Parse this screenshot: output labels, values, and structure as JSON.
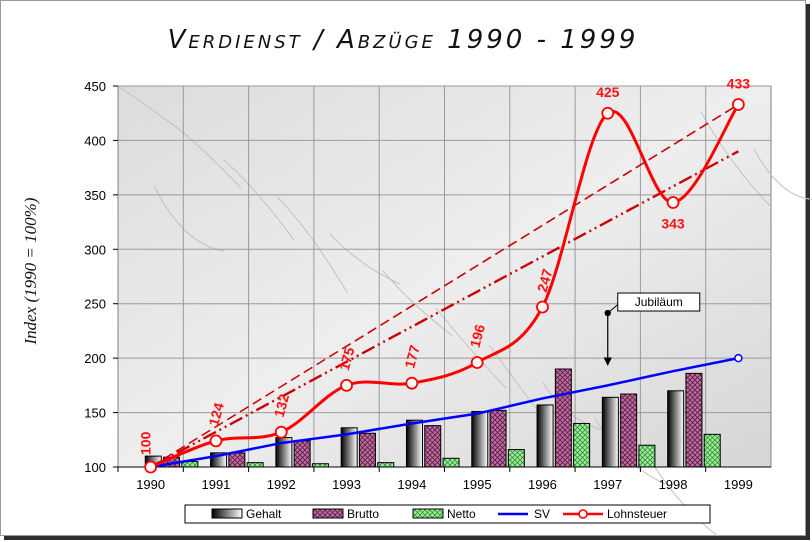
{
  "chart_data": {
    "type": "bar",
    "title": "Verdienst / Abzüge 1990 - 1999",
    "ylabel": "Index  (1990 = 100%)",
    "xlabel": "",
    "ylim": [
      100,
      450
    ],
    "yticks": [
      100,
      150,
      200,
      250,
      300,
      350,
      400,
      450
    ],
    "categories": [
      "1990",
      "1991",
      "1992",
      "1993",
      "1994",
      "1995",
      "1996",
      "1997",
      "1998",
      "1999"
    ],
    "grid": true,
    "legend_position": "bottom",
    "series": [
      {
        "name": "Gehalt",
        "kind": "bar",
        "color": "#000000",
        "values": [
          100,
          110,
          113,
          127,
          136,
          143,
          151,
          157,
          164,
          170
        ]
      },
      {
        "name": "Brutto",
        "kind": "bar",
        "color": "#993366",
        "values": [
          100,
          109,
          113,
          124,
          131,
          138,
          152,
          190,
          167,
          186
        ]
      },
      {
        "name": "Netto",
        "kind": "bar",
        "color": "#33cc33",
        "values": [
          100,
          105,
          104,
          103,
          104,
          108,
          116,
          140,
          120,
          130
        ]
      },
      {
        "name": "SV",
        "kind": "line",
        "color": "#0000ff",
        "values": [
          100,
          110,
          122,
          130,
          140,
          149,
          163,
          175,
          188,
          200
        ]
      },
      {
        "name": "Lohnsteuer",
        "kind": "line",
        "color": "#ff0000",
        "values": [
          100,
          124,
          132,
          175,
          177,
          196,
          247,
          425,
          343,
          433
        ],
        "labels": [
          "100",
          "124",
          "132",
          "175",
          "177",
          "196",
          "247",
          "425",
          "343",
          "433"
        ]
      }
    ],
    "trendlines": [
      {
        "color": "#cc0000",
        "style": "dash-dot",
        "from": {
          "x": "1990",
          "y": 100
        },
        "to": {
          "x": "1999",
          "y": 390
        }
      },
      {
        "color": "#cc0000",
        "style": "dash",
        "from": {
          "x": "1990",
          "y": 100
        },
        "to": {
          "x": "1999",
          "y": 433
        }
      }
    ],
    "annotations": [
      {
        "text": "Jubiläum",
        "x": "1997",
        "y": 190
      }
    ]
  }
}
